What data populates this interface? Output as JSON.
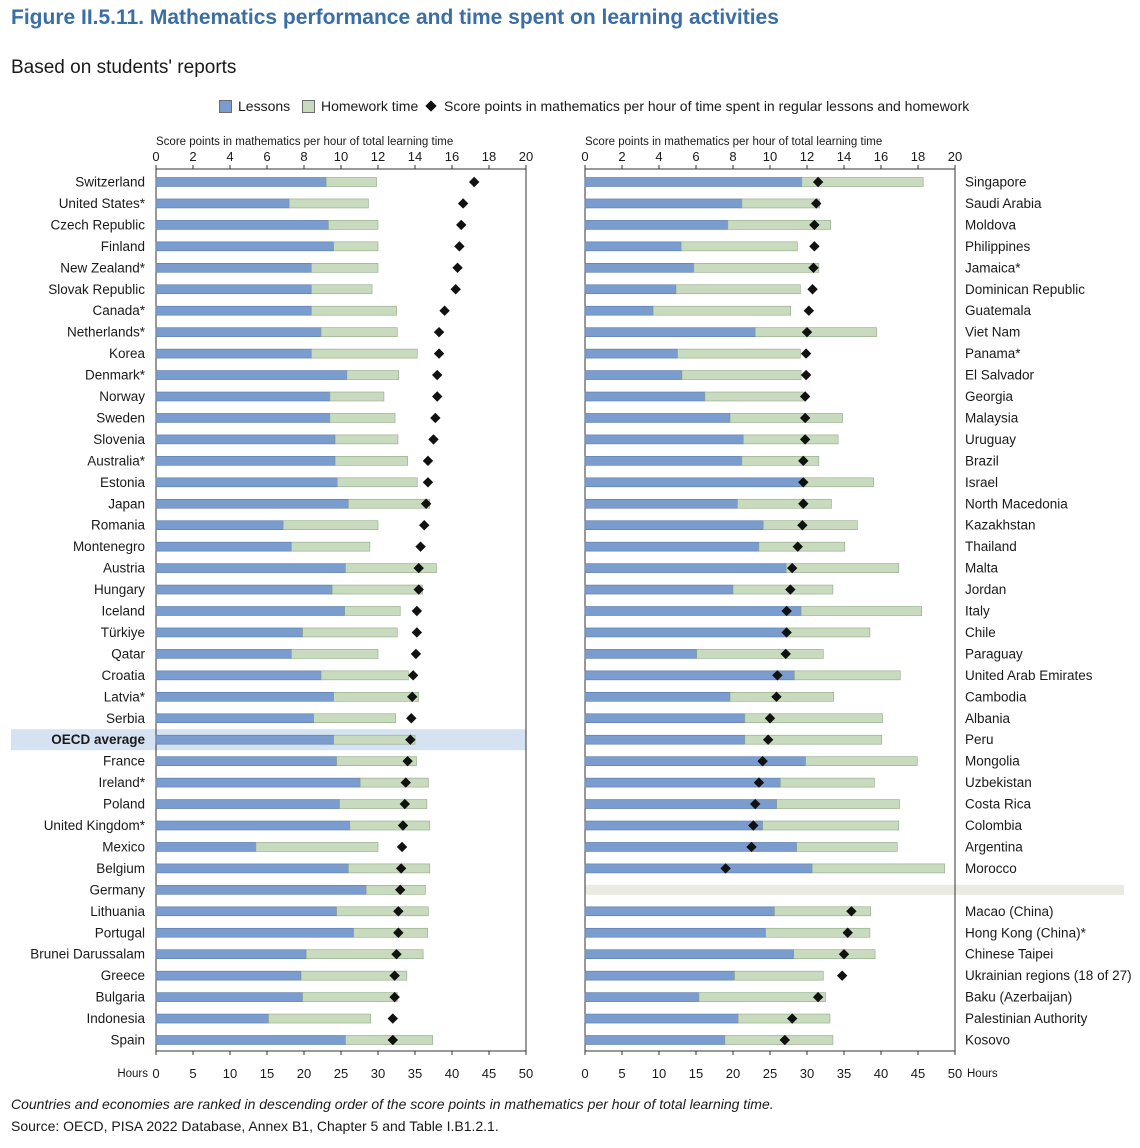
{
  "title": "Figure II.5.11. Mathematics performance and time spent on learning activities",
  "subtitle": "Based on students' reports",
  "legend": {
    "lessons": "Lessons",
    "homework": "Homework time",
    "score": "Score points in mathematics per hour of time spent in regular lessons and homework"
  },
  "note": "Countries and economies are ranked in descending order of the score points in mathematics per hour of total learning time.",
  "source": "Source: OECD, PISA 2022 Database, Annex B1, Chapter 5 and Table I.B1.2.1.",
  "colors": {
    "lessons": "#7a9ccf",
    "homework": "#c9dbbe",
    "score": "#111111",
    "highlight": "#d5e2f1",
    "separator": "#ecebe1"
  },
  "chart_data": [
    {
      "type": "bar",
      "orientation": "horizontal",
      "stacked": true,
      "top_axis_label": "Score points in mathematics per hour of total learning time",
      "top_axis_ticks": [
        "0",
        "2",
        "4",
        "6",
        "8",
        "10",
        "12",
        "14",
        "16",
        "18",
        "20"
      ],
      "top_axis_range": [
        0,
        20
      ],
      "bottom_axis_label": "Hours",
      "bottom_axis_ticks": [
        "0",
        "5",
        "10",
        "15",
        "20",
        "25",
        "30",
        "35",
        "40",
        "45",
        "50"
      ],
      "bottom_axis_range": [
        0,
        50
      ],
      "label_side": "left",
      "highlight_category": "OECD average",
      "categories": [
        "Switzerland",
        "United States*",
        "Czech Republic",
        "Finland",
        "New Zealand*",
        "Slovak Republic",
        "Canada*",
        "Netherlands*",
        "Korea",
        "Denmark*",
        "Norway",
        "Sweden",
        "Slovenia",
        "Australia*",
        "Estonia",
        "Japan",
        "Romania",
        "Montenegro",
        "Austria",
        "Hungary",
        "Iceland",
        "Türkiye",
        "Qatar",
        "Croatia",
        "Latvia*",
        "Serbia",
        "OECD average",
        "France",
        "Ireland*",
        "Poland",
        "United Kingdom*",
        "Mexico",
        "Belgium",
        "Germany",
        "Lithuania",
        "Portugal",
        "Brunei Darussalam",
        "Greece",
        "Bulgaria",
        "Indonesia",
        "Spain"
      ],
      "series": [
        {
          "name": "Lessons",
          "unit": "hours",
          "values": [
            23,
            18,
            23.3,
            24,
            21,
            21,
            21,
            22.3,
            21,
            25.8,
            23.5,
            23.5,
            24.2,
            24.2,
            24.5,
            26,
            17.2,
            18.3,
            25.6,
            23.8,
            25.5,
            19.8,
            18.3,
            22.3,
            24,
            21.3,
            24,
            24.4,
            27.6,
            24.8,
            26.2,
            13.5,
            26,
            28.4,
            24.4,
            26.7,
            20.3,
            19.6,
            19.8,
            15.2,
            25.6
          ],
          "bar_series": true
        },
        {
          "name": "Homework time",
          "unit": "hours",
          "values": [
            6.8,
            10.7,
            6.7,
            6,
            9,
            8.2,
            11.5,
            10.3,
            14.3,
            7,
            7.3,
            8.8,
            8.5,
            9.8,
            10.8,
            11,
            12.8,
            10.6,
            12.3,
            12.2,
            7.5,
            12.8,
            11.7,
            11.8,
            11.5,
            11.1,
            11,
            10.8,
            9.2,
            11.8,
            10.8,
            16.5,
            11,
            8,
            12.4,
            10,
            15.8,
            14.3,
            12.8,
            13.8,
            11.8
          ]
        },
        {
          "name": "Score points in mathematics per hour of time spent in regular lessons and homework",
          "unit": "score points per hour",
          "marker": "diamond",
          "values": [
            17.2,
            16.6,
            16.5,
            16.4,
            16.3,
            16.2,
            15.6,
            15.3,
            15.3,
            15.2,
            15.2,
            15.1,
            15.0,
            14.7,
            14.7,
            14.6,
            14.5,
            14.3,
            14.2,
            14.2,
            14.1,
            14.1,
            14.05,
            13.9,
            13.85,
            13.8,
            13.75,
            13.6,
            13.5,
            13.45,
            13.35,
            13.3,
            13.25,
            13.2,
            13.1,
            13.1,
            13.0,
            12.9,
            12.9,
            12.8,
            12.8
          ]
        }
      ]
    },
    {
      "type": "bar",
      "orientation": "horizontal",
      "stacked": true,
      "top_axis_label": "Score points in mathematics per hour of total learning time",
      "top_axis_ticks": [
        "0",
        "2",
        "4",
        "6",
        "8",
        "10",
        "12",
        "14",
        "16",
        "18",
        "20"
      ],
      "top_axis_range": [
        0,
        20
      ],
      "bottom_axis_label": "Hours",
      "bottom_axis_ticks": [
        "0",
        "5",
        "10",
        "15",
        "20",
        "25",
        "30",
        "35",
        "40",
        "45",
        "50"
      ],
      "bottom_axis_range": [
        0,
        50
      ],
      "label_side": "right",
      "separator_after": "Morocco",
      "categories": [
        "Singapore",
        "Saudi Arabia",
        "Moldova",
        "Philippines",
        "Jamaica*",
        "Dominican Republic",
        "Guatemala",
        "Viet Nam",
        "Panama*",
        "El Salvador",
        "Georgia",
        "Malaysia",
        "Uruguay",
        "Brazil",
        "Israel",
        "North Macedonia",
        "Kazakhstan",
        "Thailand",
        "Malta",
        "Jordan",
        "Italy",
        "Chile",
        "Paraguay",
        "United Arab Emirates",
        "Cambodia",
        "Albania",
        "Peru",
        "Mongolia",
        "Uzbekistan",
        "Costa Rica",
        "Colombia",
        "Argentina",
        "Morocco",
        "Macao (China)",
        "Hong Kong (China)*",
        "Chinese Taipei",
        "Ukrainian regions (18 of 27)",
        "Baku (Azerbaijan)",
        "Palestinian Authority",
        "Kosovo"
      ],
      "series": [
        {
          "name": "Lessons",
          "unit": "hours",
          "values": [
            29.3,
            21.2,
            19.3,
            13,
            14.7,
            12.3,
            9.2,
            23,
            12.5,
            13.1,
            16.2,
            19.6,
            21.4,
            21.2,
            29.4,
            20.6,
            24.1,
            23.5,
            27.2,
            20,
            29.2,
            27.2,
            15.1,
            28.3,
            19.6,
            21.6,
            21.6,
            29.8,
            26.4,
            25.9,
            24,
            28.6,
            30.7,
            25.6,
            24.4,
            28.2,
            20.2,
            15.4,
            20.7,
            18.9
          ],
          "bar_series": true
        },
        {
          "name": "Homework time",
          "unit": "hours",
          "values": [
            16.4,
            10.5,
            13.9,
            15.7,
            16.9,
            16.8,
            18.6,
            16.4,
            16.6,
            16.1,
            13.3,
            15.2,
            12.8,
            10.4,
            9.6,
            12.7,
            12.7,
            11.6,
            15.2,
            13.5,
            16.3,
            11.3,
            17.1,
            14.3,
            14,
            18.6,
            18.5,
            15.1,
            12.7,
            16.6,
            18.4,
            13.6,
            17.9,
            13,
            14.1,
            11,
            12,
            17.1,
            12.4,
            14.6
          ]
        },
        {
          "name": "Score points in mathematics per hour of time spent in regular lessons and homework",
          "unit": "score points per hour",
          "marker": "diamond",
          "values": [
            12.6,
            12.5,
            12.4,
            12.4,
            12.35,
            12.3,
            12.1,
            12.0,
            11.95,
            11.95,
            11.9,
            11.9,
            11.9,
            11.8,
            11.8,
            11.8,
            11.75,
            11.5,
            11.2,
            11.1,
            10.9,
            10.9,
            10.85,
            10.4,
            10.35,
            10.0,
            9.9,
            9.6,
            9.4,
            9.2,
            9.1,
            9.0,
            7.6,
            14.4,
            14.2,
            14.0,
            13.9,
            12.6,
            11.2,
            10.8
          ]
        }
      ]
    }
  ]
}
